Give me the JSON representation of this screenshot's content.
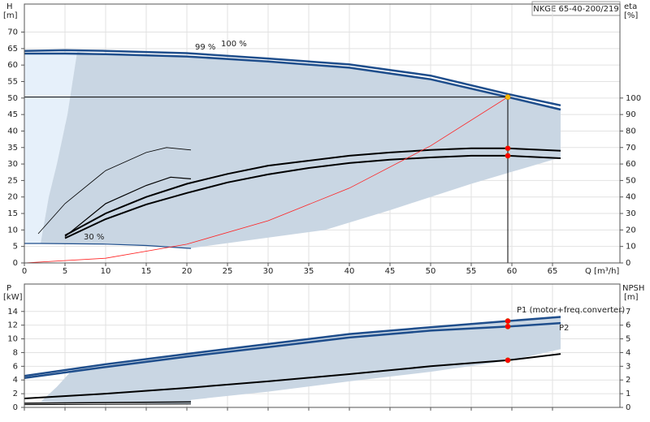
{
  "chart_data": [
    {
      "type": "line",
      "title": "NKGE 65-40-200/219",
      "ylabel": "H",
      "yunit": "[m]",
      "y2label": "eta",
      "y2unit": "[%]",
      "xlabel": "Q [m³/h]",
      "xlim": [
        0,
        73.3
      ],
      "xticks": [
        0,
        5,
        10,
        15,
        20,
        25,
        30,
        35,
        40,
        45,
        50,
        55,
        60,
        65
      ],
      "ylim": [
        0,
        78.5
      ],
      "yticks": [
        0,
        5,
        10,
        15,
        20,
        25,
        30,
        35,
        40,
        45,
        50,
        55,
        60,
        65,
        70
      ],
      "y2lim": [
        0,
        157
      ],
      "y2ticks": [
        0,
        10,
        20,
        30,
        40,
        50,
        60,
        70,
        80,
        90,
        100
      ],
      "grid": true,
      "duty_x": 59.5,
      "series": [
        {
          "type": "area",
          "color": "#e6f0fa",
          "x": [
            0,
            6.5,
            5.3,
            4,
            3,
            2,
            0
          ],
          "values": [
            63.5,
            64,
            45,
            30,
            20,
            6,
            6
          ]
        },
        {
          "type": "area",
          "color": "#c9d6e3",
          "x": [
            6.5,
            5.3,
            4,
            3,
            2,
            10,
            20.5,
            37,
            45,
            55,
            66,
            66,
            59.5,
            50,
            40,
            30,
            20,
            10
          ],
          "values": [
            64,
            45,
            30,
            20,
            6,
            5.7,
            4.5,
            10,
            16,
            24,
            32,
            46.5,
            50.3,
            55.7,
            59.2,
            61.1,
            62.6,
            63.3
          ]
        },
        {
          "name": "100 %",
          "color": "#1f4e8c",
          "width": 2.5,
          "x": [
            0,
            5,
            10,
            20,
            30,
            40,
            50,
            59.5,
            66
          ],
          "values": [
            64.3,
            64.5,
            64.3,
            63.6,
            62,
            60.2,
            56.8,
            51.2,
            47.8
          ]
        },
        {
          "name": "99 %",
          "color": "#1f4e8c",
          "width": 2.5,
          "x": [
            0,
            5,
            10,
            20,
            30,
            40,
            50,
            59.5,
            66
          ],
          "values": [
            63.5,
            63.5,
            63.3,
            62.6,
            61.1,
            59.2,
            55.7,
            50.3,
            46.5
          ],
          "duty": 50.3,
          "marker_color": "#f5b800",
          "guide": true
        },
        {
          "name": "30 %",
          "color": "#1f4e8c",
          "width": 1.2,
          "x": [
            0,
            2,
            10,
            15,
            20.5
          ],
          "values": [
            5.9,
            5.9,
            5.7,
            5.3,
            4.4
          ]
        },
        {
          "color": "#000",
          "width": 2,
          "axis": "y2",
          "x": [
            5,
            10,
            15,
            20,
            25,
            30,
            35,
            40,
            45,
            50,
            55,
            59.5,
            66
          ],
          "values": [
            16.7,
            30,
            40,
            48,
            54,
            59,
            62,
            65,
            67,
            68.5,
            69.5,
            69.5,
            68
          ],
          "duty": 69.5,
          "marker_color": "#ff0000"
        },
        {
          "color": "#000",
          "width": 2,
          "axis": "y2",
          "x": [
            5,
            10,
            15,
            20,
            25,
            30,
            35,
            40,
            45,
            50,
            55,
            59.5,
            66
          ],
          "values": [
            15,
            26.6,
            35.5,
            42.4,
            48.8,
            53.7,
            57.6,
            60.6,
            62.6,
            64,
            65,
            65,
            63.5
          ],
          "duty": 65,
          "marker_color": "#ff0000"
        },
        {
          "color": "#000",
          "width": 0.8,
          "axis": "y2",
          "x": [
            1.7,
            5,
            10,
            15,
            17.5,
            20.5
          ],
          "values": [
            17.7,
            36,
            56,
            67,
            70,
            68.5
          ]
        },
        {
          "color": "#000",
          "width": 1.2,
          "axis": "y2",
          "x": [
            5,
            10,
            15,
            18,
            20.5
          ],
          "values": [
            16,
            36,
            47,
            52,
            51
          ]
        },
        {
          "color": "#ff2020",
          "width": 0.8,
          "x": [
            0,
            10,
            20,
            30,
            40,
            50,
            59.5
          ],
          "values": [
            0,
            1.42,
            5.68,
            12.8,
            22.7,
            35.5,
            50.3
          ]
        }
      ]
    },
    {
      "type": "line",
      "ylabel": "P",
      "yunit": "[kW]",
      "y2label": "NPSH",
      "y2unit": "[m]",
      "xlim": [
        0,
        73.3
      ],
      "ylim": [
        0,
        18
      ],
      "yticks": [
        0,
        2,
        4,
        6,
        8,
        10,
        12,
        14
      ],
      "y2lim": [
        0,
        9
      ],
      "y2ticks": [
        0,
        1,
        2,
        3,
        4,
        5,
        6,
        7
      ],
      "grid": true,
      "duty_x": 59.5,
      "series": [
        {
          "type": "area",
          "color": "#c9d6e3",
          "x": [
            6,
            4,
            2,
            20.5,
            20.5,
            30,
            40,
            50,
            60,
            66,
            66,
            59.5,
            50,
            40,
            30,
            20,
            10
          ],
          "values": [
            5.6,
            3,
            0.8,
            0.5,
            1.1,
            2.3,
            3.8,
            5.2,
            6.9,
            8.5,
            13.2,
            12.6,
            11.7,
            10.7,
            9.25,
            7.8,
            6.3
          ]
        },
        {
          "name": "P1 (motor+freq.converter)",
          "color": "#1f4e8c",
          "width": 2.5,
          "x": [
            0,
            10,
            20,
            30,
            40,
            50,
            59.5,
            66
          ],
          "values": [
            4.6,
            6.3,
            7.8,
            9.25,
            10.7,
            11.7,
            12.6,
            13.2
          ],
          "duty": 12.6,
          "marker_color": "#ff0000"
        },
        {
          "name": "P2",
          "color": "#1f4e8c",
          "width": 2.5,
          "x": [
            0,
            10,
            20,
            30,
            40,
            50,
            59.5,
            66
          ],
          "values": [
            4.3,
            5.9,
            7.4,
            8.8,
            10.2,
            11.2,
            11.8,
            12.3
          ],
          "duty": 11.8,
          "marker_color": "#ff0000"
        },
        {
          "color": "#000",
          "width": 2,
          "axis": "y2",
          "x": [
            0,
            10,
            20,
            30,
            40,
            50,
            59.5,
            66
          ],
          "values": [
            0.65,
            1.0,
            1.42,
            1.9,
            2.43,
            3.0,
            3.44,
            3.9
          ],
          "duty": 3.44,
          "marker_color": "#ff0000"
        },
        {
          "color": "#000",
          "width": 1.5,
          "x": [
            0,
            20.5
          ],
          "values": [
            0.6,
            0.8
          ]
        },
        {
          "color": "#000",
          "width": 1,
          "x": [
            0,
            20.5
          ],
          "values": [
            0.4,
            0.5
          ]
        }
      ]
    }
  ]
}
